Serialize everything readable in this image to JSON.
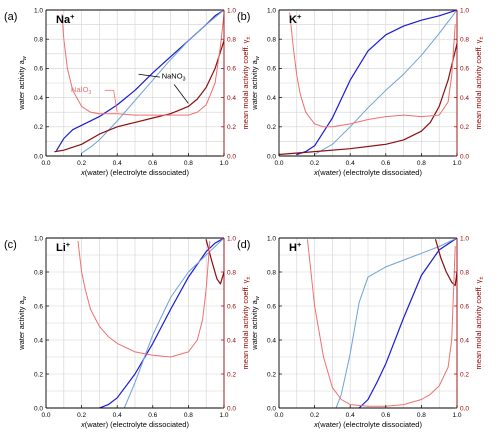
{
  "colors": {
    "dark_blue": "#1a1ad8",
    "light_blue": "#6fa2d8",
    "dark_red": "#8b1010",
    "light_red": "#f07070",
    "right_axis": "#9a0000",
    "grid": "#d2d2d2"
  },
  "axes": {
    "xlabel_var": "x",
    "xlabel_rest": "(water)  (electrolyte dissociated)",
    "ylabel_left_text": "water activity a",
    "ylabel_left_sub": "w",
    "ylabel_right_text": "mean molal activity coeff.  γ",
    "ylabel_right_sub": "±",
    "x_ticks": [
      "0.0",
      "0.2",
      "0.4",
      "0.6",
      "0.8",
      "1.0"
    ],
    "y_ticks": [
      "0.0",
      "0.2",
      "0.4",
      "0.6",
      "0.8",
      "1.0"
    ],
    "xlim": [
      0,
      1
    ],
    "ylim_left": [
      0,
      1
    ],
    "ylim_right": [
      0,
      1
    ],
    "grid": true
  },
  "chart_data": [
    {
      "type": "line",
      "panel": "(a)",
      "ion_base": "Na",
      "ion_sup": "+",
      "annotations": [
        {
          "text": "NaIO",
          "sub": "3",
          "color": "light_red"
        },
        {
          "text": "NaNO",
          "sub": "3",
          "color": "dark"
        }
      ],
      "series": [
        {
          "color": "dark_blue",
          "axis": "left",
          "x": [
            0.06,
            0.1,
            0.15,
            0.2,
            0.3,
            0.4,
            0.5,
            0.6,
            0.7,
            0.8,
            0.9,
            0.95,
            1.0
          ],
          "y": [
            0.04,
            0.12,
            0.18,
            0.21,
            0.27,
            0.35,
            0.45,
            0.57,
            0.68,
            0.79,
            0.9,
            0.96,
            1.0
          ]
        },
        {
          "color": "light_blue",
          "axis": "left",
          "x": [
            0.2,
            0.25,
            0.3,
            0.4,
            0.5,
            0.6,
            0.7,
            0.8,
            0.9,
            1.0
          ],
          "y": [
            0.02,
            0.06,
            0.11,
            0.24,
            0.38,
            0.52,
            0.66,
            0.79,
            0.9,
            1.0
          ]
        },
        {
          "color": "dark_red",
          "axis": "left",
          "x": [
            0.05,
            0.1,
            0.2,
            0.3,
            0.4,
            0.5,
            0.6,
            0.7,
            0.8,
            0.85,
            0.9,
            0.95,
            1.0
          ],
          "y": [
            0.03,
            0.04,
            0.08,
            0.15,
            0.2,
            0.23,
            0.26,
            0.29,
            0.34,
            0.39,
            0.47,
            0.6,
            0.79
          ]
        },
        {
          "color": "light_red",
          "axis": "right",
          "x": [
            0.09,
            0.1,
            0.12,
            0.15,
            0.2,
            0.25,
            0.3,
            0.35,
            0.4,
            0.5,
            0.6,
            0.7,
            0.8,
            0.85,
            0.9,
            0.95,
            0.98,
            1.0
          ],
          "y": [
            0.97,
            0.8,
            0.6,
            0.45,
            0.34,
            0.3,
            0.29,
            0.29,
            0.29,
            0.28,
            0.28,
            0.28,
            0.28,
            0.3,
            0.35,
            0.5,
            0.75,
            0.97
          ]
        }
      ]
    },
    {
      "type": "line",
      "panel": "(b)",
      "ion_base": "K",
      "ion_sup": "+",
      "annotations": [],
      "series": [
        {
          "color": "dark_blue",
          "axis": "left",
          "x": [
            0.1,
            0.15,
            0.2,
            0.3,
            0.4,
            0.5,
            0.6,
            0.7,
            0.8,
            0.9,
            1.0
          ],
          "y": [
            0.01,
            0.03,
            0.07,
            0.26,
            0.52,
            0.72,
            0.83,
            0.89,
            0.93,
            0.96,
            1.0
          ]
        },
        {
          "color": "light_blue",
          "axis": "left",
          "x": [
            0.2,
            0.3,
            0.4,
            0.5,
            0.6,
            0.7,
            0.8,
            0.9,
            1.0
          ],
          "y": [
            0.01,
            0.08,
            0.2,
            0.33,
            0.45,
            0.56,
            0.69,
            0.84,
            1.0
          ]
        },
        {
          "color": "dark_red",
          "axis": "left",
          "x": [
            0.0,
            0.2,
            0.4,
            0.6,
            0.7,
            0.8,
            0.85,
            0.9,
            0.95,
            1.0
          ],
          "y": [
            0.01,
            0.03,
            0.05,
            0.08,
            0.11,
            0.17,
            0.23,
            0.34,
            0.52,
            0.77
          ]
        },
        {
          "color": "light_red",
          "axis": "right",
          "x": [
            0.06,
            0.08,
            0.1,
            0.12,
            0.15,
            0.2,
            0.25,
            0.3,
            0.4,
            0.5,
            0.6,
            0.7,
            0.8,
            0.9,
            0.95,
            0.97,
            0.99
          ],
          "y": [
            0.98,
            0.75,
            0.55,
            0.42,
            0.3,
            0.22,
            0.2,
            0.2,
            0.22,
            0.25,
            0.27,
            0.28,
            0.27,
            0.28,
            0.37,
            0.55,
            0.9
          ]
        }
      ]
    },
    {
      "type": "line",
      "panel": "(c)",
      "ion_base": "Li",
      "ion_sup": "+",
      "annotations": [],
      "series": [
        {
          "color": "dark_blue",
          "axis": "left",
          "x": [
            0.3,
            0.35,
            0.4,
            0.5,
            0.6,
            0.7,
            0.8,
            0.9,
            0.95,
            1.0
          ],
          "y": [
            0.0,
            0.02,
            0.06,
            0.2,
            0.38,
            0.58,
            0.77,
            0.92,
            0.97,
            1.0
          ]
        },
        {
          "color": "light_blue",
          "axis": "left",
          "x": [
            0.44,
            0.5,
            0.6,
            0.7,
            0.8,
            0.9,
            1.0
          ],
          "y": [
            0.0,
            0.15,
            0.43,
            0.65,
            0.8,
            0.9,
            1.0
          ]
        },
        {
          "color": "dark_red",
          "axis": "left",
          "x": [
            0.9,
            0.93,
            0.96,
            0.98,
            1.0
          ],
          "y": [
            0.99,
            0.87,
            0.76,
            0.73,
            0.8
          ]
        },
        {
          "color": "light_red",
          "axis": "right",
          "x": [
            0.18,
            0.2,
            0.22,
            0.25,
            0.3,
            0.35,
            0.4,
            0.5,
            0.6,
            0.7,
            0.8,
            0.85,
            0.88,
            0.9,
            0.92
          ],
          "y": [
            0.98,
            0.8,
            0.7,
            0.58,
            0.48,
            0.42,
            0.38,
            0.33,
            0.31,
            0.3,
            0.33,
            0.4,
            0.52,
            0.7,
            0.98
          ]
        }
      ]
    },
    {
      "type": "line",
      "panel": "(d)",
      "ion_base": "H",
      "ion_sup": "+",
      "annotations": [],
      "series": [
        {
          "color": "dark_blue",
          "axis": "left",
          "x": [
            0.45,
            0.5,
            0.55,
            0.6,
            0.7,
            0.8,
            0.9,
            1.0
          ],
          "y": [
            0.0,
            0.05,
            0.15,
            0.26,
            0.53,
            0.78,
            0.93,
            1.0
          ]
        },
        {
          "color": "light_blue",
          "axis": "left",
          "x": [
            0.32,
            0.35,
            0.4,
            0.45,
            0.5,
            0.6,
            0.7,
            0.8,
            0.9,
            1.0
          ],
          "y": [
            0.0,
            0.08,
            0.32,
            0.62,
            0.77,
            0.83,
            0.87,
            0.91,
            0.95,
            1.0
          ]
        },
        {
          "color": "dark_red",
          "axis": "left",
          "x": [
            0.88,
            0.91,
            0.94,
            0.97,
            0.99,
            1.0
          ],
          "y": [
            0.99,
            0.88,
            0.8,
            0.74,
            0.72,
            0.8
          ]
        },
        {
          "color": "light_red",
          "axis": "right",
          "x": [
            0.16,
            0.2,
            0.25,
            0.3,
            0.35,
            0.4,
            0.5,
            0.6,
            0.7,
            0.8,
            0.85,
            0.9,
            0.95,
            0.97,
            0.99
          ],
          "y": [
            0.99,
            0.6,
            0.3,
            0.12,
            0.05,
            0.02,
            0.01,
            0.01,
            0.02,
            0.05,
            0.08,
            0.13,
            0.24,
            0.4,
            0.95
          ]
        }
      ]
    }
  ]
}
